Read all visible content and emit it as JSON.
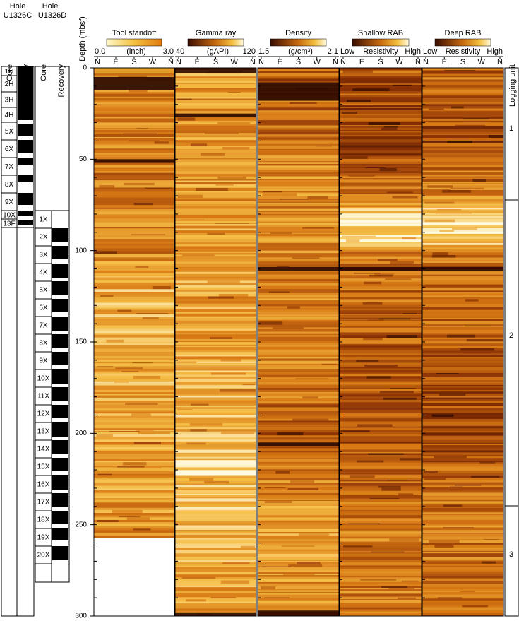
{
  "holes": [
    {
      "label": "Hole",
      "name": "U1326C",
      "column_headers": [
        "Core",
        "Recovery"
      ],
      "cores": [
        "1H",
        "2H",
        "3H",
        "4H",
        "5X",
        "6X",
        "7X",
        "8X",
        "9X",
        "10X",
        "13F"
      ]
    },
    {
      "label": "Hole",
      "name": "U1326D",
      "column_headers": [
        "Core",
        "Recovery"
      ],
      "cores": [
        "1X",
        "2X",
        "3X",
        "4X",
        "5X",
        "6X",
        "7X",
        "8X",
        "9X",
        "10X",
        "11X",
        "12X",
        "13X",
        "14X",
        "15X",
        "16X",
        "17X",
        "18X",
        "19X",
        "20X"
      ]
    }
  ],
  "depth_axis": {
    "label": "Depth (mbsf)",
    "ticks": [
      0,
      50,
      100,
      150,
      200,
      250,
      300
    ]
  },
  "tracks": [
    {
      "title": "Tool standoff",
      "min": "0.0",
      "unit": "(inch)",
      "max": "3.0",
      "azimuth": [
        "N",
        "E",
        "S",
        "W",
        "N"
      ]
    },
    {
      "title": "Gamma ray",
      "min": "40",
      "unit": "(gAPI)",
      "max": "120",
      "azimuth": [
        "N",
        "E",
        "S",
        "W",
        "N"
      ]
    },
    {
      "title": "Density",
      "min": "1.5",
      "unit": "(g/cm³)",
      "max": "2.1",
      "azimuth": [
        "N",
        "E",
        "S",
        "W",
        "N"
      ]
    },
    {
      "title": "Shallow RAB",
      "min": "Low",
      "unit": "Resistivity",
      "max": "High",
      "azimuth": [
        "N",
        "E",
        "S",
        "W",
        "N"
      ]
    },
    {
      "title": "Deep RAB",
      "min": "Low",
      "unit": "Resistivity",
      "max": "High",
      "azimuth": [
        "N",
        "E",
        "S",
        "W",
        "N"
      ]
    }
  ],
  "logging_unit": {
    "label": "Logging unit",
    "units": [
      "1",
      "2",
      "3"
    ]
  }
}
